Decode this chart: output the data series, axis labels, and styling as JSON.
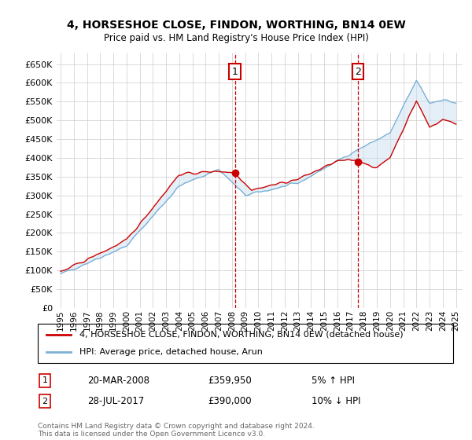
{
  "title": "4, HORSESHOE CLOSE, FINDON, WORTHING, BN14 0EW",
  "subtitle": "Price paid vs. HM Land Registry's House Price Index (HPI)",
  "ylim": [
    0,
    680000
  ],
  "yticks": [
    0,
    50000,
    100000,
    150000,
    200000,
    250000,
    300000,
    350000,
    400000,
    450000,
    500000,
    550000,
    600000,
    650000
  ],
  "xlim_start": 1994.7,
  "xlim_end": 2025.5,
  "xtick_years": [
    1995,
    1996,
    1997,
    1998,
    1999,
    2000,
    2001,
    2002,
    2003,
    2004,
    2005,
    2006,
    2007,
    2008,
    2009,
    2010,
    2011,
    2012,
    2013,
    2014,
    2015,
    2016,
    2017,
    2018,
    2019,
    2020,
    2021,
    2022,
    2023,
    2024,
    2025
  ],
  "sale1_year": 2008.22,
  "sale1_price": 359950,
  "sale1_label": "1",
  "sale1_date": "20-MAR-2008",
  "sale1_hpi": "5% ↑ HPI",
  "sale2_year": 2017.58,
  "sale2_price": 390000,
  "sale2_label": "2",
  "sale2_date": "28-JUL-2017",
  "sale2_hpi": "10% ↓ HPI",
  "red_color": "#cc0000",
  "blue_color": "#7ab0d4",
  "fill_color": "#cce0f0",
  "bg_color": "#ffffff",
  "grid_color": "#cccccc",
  "legend_line1": "4, HORSESHOE CLOSE, FINDON, WORTHING, BN14 0EW (detached house)",
  "legend_line2": "HPI: Average price, detached house, Arun",
  "footer": "Contains HM Land Registry data © Crown copyright and database right 2024.\nThis data is licensed under the Open Government Licence v3.0."
}
